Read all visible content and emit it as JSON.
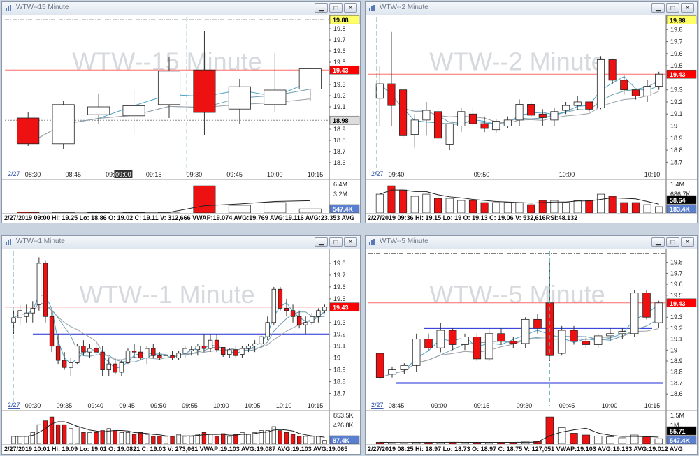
{
  "panes": [
    {
      "id": "p15",
      "window_title": "WTW--15 Minute",
      "watermark": "WTW--15 Minute",
      "date_label": "2/27",
      "time_labels": [
        "08:30",
        "08:45",
        "09:00",
        "09:15",
        "09:30",
        "09:45",
        "10:00",
        "10:15"
      ],
      "cursor_label": "09:00",
      "price_axis": [
        "19.8",
        "19.7",
        "19.6",
        "19.5",
        "19.3",
        "19.2",
        "19.1",
        "18.9",
        "18.8",
        "18.7",
        "18.6"
      ],
      "badges": [
        {
          "text": "19.88",
          "bg": "#ffff66",
          "fg": "#000000"
        },
        {
          "text": "19.43",
          "bg": "#ff0000",
          "fg": "#ffffff"
        },
        {
          "text": "18.98",
          "bg": "#dddddd",
          "fg": "#000000"
        }
      ],
      "volume_axis": [
        "6.4M",
        "3.2M"
      ],
      "volume_badge": {
        "text": "547.4K",
        "bg": "#5b7fd0",
        "fg": "#ffffff"
      },
      "status_text": "2/27/2019 09:00  Hi: 19.25  Lo: 18.86  O: 19.02  C: 19.11  V: 312,666 VWAP:19.074 AVG:19.769 AVG:19.116 AVG:23.353 AVG"
    },
    {
      "id": "p2",
      "window_title": "WTW--2 Minute",
      "watermark": "WTW--2 Minute",
      "date_label": "2/27",
      "time_labels": [
        "09:40",
        "09:50",
        "10:00",
        "10:10"
      ],
      "price_axis": [
        "19.8",
        "19.7",
        "19.6",
        "19.5",
        "19.3",
        "19.2",
        "19.1",
        "19",
        "18.9",
        "18.8",
        "18.7"
      ],
      "badges": [
        {
          "text": "19.88",
          "bg": "#ffff66",
          "fg": "#000000"
        },
        {
          "text": "19.43",
          "bg": "#ff0000",
          "fg": "#ffffff"
        }
      ],
      "volume_axis": [
        "1.4M",
        "686.7K"
      ],
      "volume_badges": [
        {
          "text": "58.64",
          "bg": "#000000",
          "fg": "#ffffff"
        },
        {
          "text": "183.4K",
          "bg": "#5b7fd0",
          "fg": "#ffffff"
        }
      ],
      "status_text": "2/27/2019 09:36  Hi: 19.15  Lo: 19  O: 19.13  C: 19.06  V: 532,616RSI:48.132"
    },
    {
      "id": "p1",
      "window_title": "WTW--1 Minute",
      "watermark": "WTW--1 Minute",
      "date_label": "2/27",
      "time_labels": [
        "09:30",
        "09:35",
        "09:40",
        "09:45",
        "09:50",
        "09:55",
        "10:00",
        "10:05",
        "10:10",
        "10:15"
      ],
      "price_axis": [
        "19.8",
        "19.7",
        "19.6",
        "19.5",
        "19.3",
        "19.2",
        "19.1",
        "19",
        "18.9",
        "18.8",
        "18.7"
      ],
      "badges": [
        {
          "text": "19.43",
          "bg": "#ff0000",
          "fg": "#ffffff"
        }
      ],
      "volume_axis": [
        "853.5K",
        "426.8K"
      ],
      "volume_badge": {
        "text": "87.4K",
        "bg": "#5b7fd0",
        "fg": "#ffffff"
      },
      "status_text": "2/27/2019 10:01  Hi: 19.09  Lo: 19.01  O: 19.0821  C: 19.03  V: 273,061 VWAP:19.103 AVG:19.087 AVG:19.103 AVG:19.065"
    },
    {
      "id": "p5",
      "window_title": "WTW--5 Minute",
      "watermark": "WTW--5 Minute",
      "date_label": "2/27",
      "time_labels": [
        "08:45",
        "09:00",
        "09:15",
        "09:30",
        "09:45",
        "10:00",
        "10:15"
      ],
      "price_axis": [
        "19.8",
        "19.7",
        "19.6",
        "19.5",
        "19.3",
        "19.2",
        "19.1",
        "19",
        "18.9",
        "18.8",
        "18.7",
        "18.6"
      ],
      "badges": [
        {
          "text": "19.43",
          "bg": "#ff0000",
          "fg": "#ffffff"
        }
      ],
      "volume_axis": [
        "1.5M",
        "1M"
      ],
      "volume_badges": [
        {
          "text": "55.71",
          "bg": "#000000",
          "fg": "#ffffff"
        },
        {
          "text": "547.4K",
          "bg": "#5b7fd0",
          "fg": "#ffffff"
        }
      ],
      "status_text": "2/27/2019 08:25  Hi: 18.97  Lo: 18.73  O: 18.97  C: 18.75  V: 127,051 VWAP:19.103 AVG:19.133 AVG:19.012 AVG"
    }
  ],
  "chart_data": [
    {
      "type": "candlestick",
      "pane": "p15",
      "ylim": [
        18.55,
        19.9
      ],
      "candles": [
        {
          "o": 19.0,
          "h": 19.05,
          "l": 18.75,
          "c": 18.77
        },
        {
          "o": 18.77,
          "h": 19.15,
          "l": 18.72,
          "c": 19.12
        },
        {
          "o": 19.03,
          "h": 19.22,
          "l": 18.95,
          "c": 19.1
        },
        {
          "o": 19.02,
          "h": 19.25,
          "l": 18.86,
          "c": 19.11
        },
        {
          "o": 19.12,
          "h": 19.55,
          "l": 19.0,
          "c": 19.42
        },
        {
          "o": 19.43,
          "h": 19.78,
          "l": 18.85,
          "c": 19.05
        },
        {
          "o": 19.08,
          "h": 19.35,
          "l": 18.95,
          "c": 19.28
        },
        {
          "o": 19.12,
          "h": 19.58,
          "l": 19.05,
          "c": 19.25
        },
        {
          "o": 19.26,
          "h": 19.45,
          "l": 19.15,
          "c": 19.44
        }
      ],
      "volumes": [
        0.2,
        0.15,
        0.1,
        0.1,
        0.2,
        6.0,
        1.7,
        2.3,
        0.9
      ],
      "ref_lines": {
        "high": 19.88,
        "last": 19.43,
        "low": 18.98
      },
      "y_unit": "USD",
      "volume_unit": "M"
    },
    {
      "type": "candlestick",
      "pane": "p2",
      "ylim": [
        18.65,
        19.9
      ],
      "candles": [
        {
          "o": 19.23,
          "h": 19.5,
          "l": 19.0,
          "c": 19.35
        },
        {
          "o": 19.35,
          "h": 19.78,
          "l": 19.0,
          "c": 19.17
        },
        {
          "o": 19.3,
          "h": 19.3,
          "l": 18.9,
          "c": 18.92
        },
        {
          "o": 18.93,
          "h": 19.1,
          "l": 18.82,
          "c": 19.05
        },
        {
          "o": 19.05,
          "h": 19.2,
          "l": 18.92,
          "c": 19.13
        },
        {
          "o": 19.12,
          "h": 19.18,
          "l": 18.85,
          "c": 18.9
        },
        {
          "o": 18.85,
          "h": 19.02,
          "l": 18.8,
          "c": 19.02
        },
        {
          "o": 19.0,
          "h": 19.15,
          "l": 18.95,
          "c": 19.12
        },
        {
          "o": 19.1,
          "h": 19.15,
          "l": 19.0,
          "c": 19.02
        },
        {
          "o": 19.02,
          "h": 19.08,
          "l": 18.95,
          "c": 18.98
        },
        {
          "o": 18.97,
          "h": 19.06,
          "l": 18.94,
          "c": 19.04
        },
        {
          "o": 19.0,
          "h": 19.08,
          "l": 18.98,
          "c": 19.05
        },
        {
          "o": 19.05,
          "h": 19.22,
          "l": 19.0,
          "c": 19.18
        },
        {
          "o": 19.18,
          "h": 19.2,
          "l": 19.08,
          "c": 19.09
        },
        {
          "o": 19.1,
          "h": 19.14,
          "l": 19.0,
          "c": 19.07
        },
        {
          "o": 19.05,
          "h": 19.15,
          "l": 19.0,
          "c": 19.12
        },
        {
          "o": 19.13,
          "h": 19.2,
          "l": 19.1,
          "c": 19.17
        },
        {
          "o": 19.17,
          "h": 19.25,
          "l": 19.13,
          "c": 19.2
        },
        {
          "o": 19.2,
          "h": 19.2,
          "l": 19.12,
          "c": 19.14
        },
        {
          "o": 19.15,
          "h": 19.58,
          "l": 19.14,
          "c": 19.55
        },
        {
          "o": 19.55,
          "h": 19.56,
          "l": 19.35,
          "c": 19.38
        },
        {
          "o": 19.38,
          "h": 19.42,
          "l": 19.26,
          "c": 19.3
        },
        {
          "o": 19.3,
          "h": 19.3,
          "l": 19.22,
          "c": 19.25
        },
        {
          "o": 19.25,
          "h": 19.38,
          "l": 19.2,
          "c": 19.33
        },
        {
          "o": 19.33,
          "h": 19.45,
          "l": 19.3,
          "c": 19.43
        }
      ],
      "volumes": [
        0.9,
        1.3,
        1.1,
        0.8,
        0.9,
        0.7,
        0.7,
        0.6,
        0.6,
        0.5,
        0.5,
        0.5,
        0.5,
        0.4,
        0.6,
        0.6,
        0.5,
        0.6,
        0.6,
        0.9,
        0.8,
        0.5,
        0.5,
        0.4,
        0.3
      ],
      "ref_lines": {
        "high": 19.88,
        "last": 19.43
      },
      "y_unit": "USD",
      "volume_unit": "M"
    },
    {
      "type": "candlestick",
      "pane": "p1",
      "ylim": [
        18.65,
        19.9
      ],
      "candles": [
        {
          "o": 19.3,
          "h": 19.4,
          "l": 19.2,
          "c": 19.34
        },
        {
          "o": 19.34,
          "h": 19.45,
          "l": 19.28,
          "c": 19.4
        },
        {
          "o": 19.35,
          "h": 19.45,
          "l": 19.3,
          "c": 19.38
        },
        {
          "o": 19.38,
          "h": 19.48,
          "l": 19.3,
          "c": 19.42
        },
        {
          "o": 19.45,
          "h": 19.85,
          "l": 19.4,
          "c": 19.8
        },
        {
          "o": 19.8,
          "h": 19.82,
          "l": 19.3,
          "c": 19.35
        },
        {
          "o": 19.35,
          "h": 19.4,
          "l": 19.05,
          "c": 19.1
        },
        {
          "o": 19.1,
          "h": 19.2,
          "l": 18.95,
          "c": 18.98
        },
        {
          "o": 18.98,
          "h": 19.05,
          "l": 18.9,
          "c": 18.92
        },
        {
          "o": 18.92,
          "h": 19.0,
          "l": 18.85,
          "c": 18.96
        },
        {
          "o": 18.96,
          "h": 19.12,
          "l": 18.95,
          "c": 19.1
        },
        {
          "o": 19.1,
          "h": 19.15,
          "l": 19.02,
          "c": 19.05
        },
        {
          "o": 19.05,
          "h": 19.12,
          "l": 19.0,
          "c": 19.08
        },
        {
          "o": 19.08,
          "h": 19.12,
          "l": 19.02,
          "c": 19.05
        },
        {
          "o": 19.05,
          "h": 19.1,
          "l": 18.85,
          "c": 18.9
        },
        {
          "o": 18.9,
          "h": 19.0,
          "l": 18.85,
          "c": 18.95
        },
        {
          "o": 18.95,
          "h": 19.0,
          "l": 18.86,
          "c": 18.88
        },
        {
          "o": 18.88,
          "h": 18.98,
          "l": 18.85,
          "c": 18.96
        },
        {
          "o": 18.96,
          "h": 19.08,
          "l": 18.95,
          "c": 19.06
        },
        {
          "o": 19.06,
          "h": 19.12,
          "l": 19.0,
          "c": 19.05
        },
        {
          "o": 19.05,
          "h": 19.1,
          "l": 18.98,
          "c": 19.0
        },
        {
          "o": 19.0,
          "h": 19.1,
          "l": 18.95,
          "c": 19.08
        },
        {
          "o": 19.08,
          "h": 19.12,
          "l": 19.0,
          "c": 19.02
        },
        {
          "o": 19.02,
          "h": 19.05,
          "l": 18.98,
          "c": 19.0
        },
        {
          "o": 19.0,
          "h": 19.05,
          "l": 18.98,
          "c": 19.02
        },
        {
          "o": 19.02,
          "h": 19.06,
          "l": 18.98,
          "c": 19.0
        },
        {
          "o": 19.0,
          "h": 19.06,
          "l": 18.98,
          "c": 19.04
        },
        {
          "o": 19.04,
          "h": 19.1,
          "l": 19.0,
          "c": 19.08
        },
        {
          "o": 19.06,
          "h": 19.1,
          "l": 19.02,
          "c": 19.07
        },
        {
          "o": 19.07,
          "h": 19.12,
          "l": 19.02,
          "c": 19.1
        },
        {
          "o": 19.1,
          "h": 19.2,
          "l": 19.05,
          "c": 19.08
        },
        {
          "o": 19.08,
          "h": 19.2,
          "l": 19.05,
          "c": 19.15
        },
        {
          "o": 19.15,
          "h": 19.2,
          "l": 19.05,
          "c": 19.07
        },
        {
          "o": 19.09,
          "h": 19.09,
          "l": 19.01,
          "c": 19.03
        },
        {
          "o": 19.03,
          "h": 19.08,
          "l": 19.0,
          "c": 19.07
        },
        {
          "o": 19.07,
          "h": 19.1,
          "l": 19.0,
          "c": 19.02
        },
        {
          "o": 19.03,
          "h": 19.1,
          "l": 19.0,
          "c": 19.08
        },
        {
          "o": 19.08,
          "h": 19.12,
          "l": 19.05,
          "c": 19.1
        },
        {
          "o": 19.1,
          "h": 19.15,
          "l": 19.05,
          "c": 19.12
        },
        {
          "o": 19.12,
          "h": 19.2,
          "l": 19.08,
          "c": 19.18
        },
        {
          "o": 19.18,
          "h": 19.35,
          "l": 19.15,
          "c": 19.3
        },
        {
          "o": 19.3,
          "h": 19.6,
          "l": 19.28,
          "c": 19.58
        },
        {
          "o": 19.58,
          "h": 19.6,
          "l": 19.4,
          "c": 19.42
        },
        {
          "o": 19.42,
          "h": 19.5,
          "l": 19.35,
          "c": 19.4
        },
        {
          "o": 19.4,
          "h": 19.45,
          "l": 19.3,
          "c": 19.35
        },
        {
          "o": 19.35,
          "h": 19.4,
          "l": 19.25,
          "c": 19.28
        },
        {
          "o": 19.28,
          "h": 19.35,
          "l": 19.2,
          "c": 19.3
        },
        {
          "o": 19.3,
          "h": 19.38,
          "l": 19.28,
          "c": 19.35
        },
        {
          "o": 19.35,
          "h": 19.42,
          "l": 19.3,
          "c": 19.4
        },
        {
          "o": 19.4,
          "h": 19.45,
          "l": 19.38,
          "c": 19.43
        }
      ],
      "volumes": [
        0.2,
        0.2,
        0.2,
        0.3,
        0.5,
        0.6,
        0.7,
        0.5,
        0.5,
        0.4,
        0.45,
        0.3,
        0.3,
        0.3,
        0.35,
        0.4,
        0.35,
        0.3,
        0.3,
        0.25,
        0.3,
        0.25,
        0.2,
        0.2,
        0.2,
        0.2,
        0.25,
        0.2,
        0.2,
        0.25,
        0.3,
        0.25,
        0.2,
        0.27,
        0.2,
        0.25,
        0.3,
        0.25,
        0.3,
        0.35,
        0.35,
        0.45,
        0.35,
        0.3,
        0.25,
        0.2,
        0.2,
        0.2,
        0.2,
        0.1
      ],
      "ref_lines": {
        "last": 19.43,
        "support": 19.2
      },
      "y_unit": "USD",
      "volume_unit": "K"
    },
    {
      "type": "candlestick",
      "pane": "p5",
      "ylim": [
        18.55,
        19.9
      ],
      "candles": [
        {
          "o": 18.97,
          "h": 18.97,
          "l": 18.73,
          "c": 18.75
        },
        {
          "o": 18.78,
          "h": 18.85,
          "l": 18.75,
          "c": 18.82
        },
        {
          "o": 18.82,
          "h": 18.88,
          "l": 18.78,
          "c": 18.86
        },
        {
          "o": 18.86,
          "h": 19.15,
          "l": 18.8,
          "c": 19.1
        },
        {
          "o": 19.1,
          "h": 19.15,
          "l": 19.0,
          "c": 19.02
        },
        {
          "o": 19.02,
          "h": 19.25,
          "l": 18.98,
          "c": 19.18
        },
        {
          "o": 19.18,
          "h": 19.2,
          "l": 19.0,
          "c": 19.05
        },
        {
          "o": 19.05,
          "h": 19.15,
          "l": 19.0,
          "c": 19.12
        },
        {
          "o": 19.12,
          "h": 19.15,
          "l": 18.9,
          "c": 18.92
        },
        {
          "o": 18.92,
          "h": 19.2,
          "l": 18.9,
          "c": 19.15
        },
        {
          "o": 19.15,
          "h": 19.2,
          "l": 19.05,
          "c": 19.08
        },
        {
          "o": 19.08,
          "h": 19.12,
          "l": 19.02,
          "c": 19.06
        },
        {
          "o": 19.06,
          "h": 19.3,
          "l": 19.02,
          "c": 19.28
        },
        {
          "o": 19.28,
          "h": 19.33,
          "l": 19.15,
          "c": 19.2
        },
        {
          "o": 19.43,
          "h": 19.8,
          "l": 18.9,
          "c": 18.95
        },
        {
          "o": 18.97,
          "h": 19.22,
          "l": 18.95,
          "c": 19.18
        },
        {
          "o": 19.18,
          "h": 19.22,
          "l": 19.05,
          "c": 19.08
        },
        {
          "o": 19.08,
          "h": 19.12,
          "l": 19.02,
          "c": 19.05
        },
        {
          "o": 19.05,
          "h": 19.15,
          "l": 19.02,
          "c": 19.13
        },
        {
          "o": 19.13,
          "h": 19.2,
          "l": 19.08,
          "c": 19.15
        },
        {
          "o": 19.15,
          "h": 19.2,
          "l": 19.1,
          "c": 19.17
        },
        {
          "o": 19.15,
          "h": 19.55,
          "l": 19.12,
          "c": 19.52
        },
        {
          "o": 19.52,
          "h": 19.55,
          "l": 19.28,
          "c": 19.3
        },
        {
          "o": 19.25,
          "h": 19.45,
          "l": 19.2,
          "c": 19.43
        }
      ],
      "volumes": [
        0.1,
        0.08,
        0.08,
        0.1,
        0.1,
        0.1,
        0.1,
        0.08,
        0.1,
        0.1,
        0.1,
        0.08,
        0.12,
        0.15,
        1.5,
        0.9,
        0.6,
        0.5,
        0.45,
        0.4,
        0.35,
        0.5,
        0.4,
        0.3
      ],
      "ref_lines": {
        "high": 19.88,
        "last": 19.43,
        "resistance": 19.2,
        "support": 18.7
      },
      "y_unit": "USD",
      "volume_unit": "M"
    }
  ]
}
